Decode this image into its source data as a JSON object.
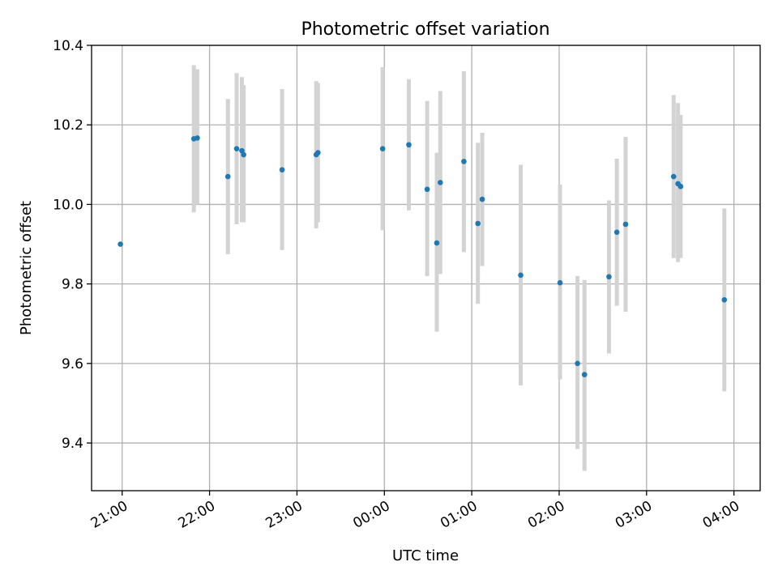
{
  "chart_data": {
    "type": "scatter",
    "title": "Photometric offset variation",
    "xlabel": "UTC time",
    "ylabel": "Photometric offset",
    "x_axis": {
      "unit": "UTC time (hours; values past 24 are after midnight on the next day)",
      "range": [
        20.65,
        28.3
      ],
      "ticks": [
        21,
        22,
        23,
        24,
        25,
        26,
        27,
        28
      ],
      "tick_labels": [
        "21:00",
        "22:00",
        "23:00",
        "00:00",
        "01:00",
        "02:00",
        "03:00",
        "04:00"
      ]
    },
    "y_axis": {
      "range": [
        9.28,
        10.4
      ],
      "ticks": [
        9.4,
        9.6,
        9.8,
        10.0,
        10.2,
        10.4
      ],
      "tick_labels": [
        "9.4",
        "9.6",
        "9.8",
        "10.0",
        "10.2",
        "10.4"
      ]
    },
    "grid": true,
    "marker_color": "#1f77b4",
    "errorbar_color": "#d3d3d3",
    "points": [
      {
        "x": 20.98,
        "y": 9.9,
        "ylow": null,
        "yhigh": null
      },
      {
        "x": 21.82,
        "y": 10.165,
        "ylow": 9.98,
        "yhigh": 10.35
      },
      {
        "x": 21.86,
        "y": 10.167,
        "ylow": 10.0,
        "yhigh": 10.34
      },
      {
        "x": 22.21,
        "y": 10.07,
        "ylow": 9.875,
        "yhigh": 10.265
      },
      {
        "x": 22.31,
        "y": 10.14,
        "ylow": 9.95,
        "yhigh": 10.33
      },
      {
        "x": 22.37,
        "y": 10.135,
        "ylow": 9.955,
        "yhigh": 10.32
      },
      {
        "x": 22.39,
        "y": 10.125,
        "ylow": 9.955,
        "yhigh": 10.3
      },
      {
        "x": 22.83,
        "y": 10.087,
        "ylow": 9.885,
        "yhigh": 10.29
      },
      {
        "x": 23.22,
        "y": 10.125,
        "ylow": 9.94,
        "yhigh": 10.31
      },
      {
        "x": 23.24,
        "y": 10.13,
        "ylow": 9.955,
        "yhigh": 10.305
      },
      {
        "x": 23.98,
        "y": 10.14,
        "ylow": 9.935,
        "yhigh": 10.345
      },
      {
        "x": 24.28,
        "y": 10.15,
        "ylow": 9.985,
        "yhigh": 10.315
      },
      {
        "x": 24.49,
        "y": 10.038,
        "ylow": 9.82,
        "yhigh": 10.26
      },
      {
        "x": 24.6,
        "y": 9.903,
        "ylow": 9.68,
        "yhigh": 10.13
      },
      {
        "x": 24.64,
        "y": 10.055,
        "ylow": 9.825,
        "yhigh": 10.285
      },
      {
        "x": 24.91,
        "y": 10.108,
        "ylow": 9.88,
        "yhigh": 10.335
      },
      {
        "x": 25.07,
        "y": 9.952,
        "ylow": 9.75,
        "yhigh": 10.155
      },
      {
        "x": 25.12,
        "y": 10.013,
        "ylow": 9.845,
        "yhigh": 10.18
      },
      {
        "x": 25.56,
        "y": 9.822,
        "ylow": 9.545,
        "yhigh": 10.1
      },
      {
        "x": 26.01,
        "y": 9.803,
        "ylow": 9.56,
        "yhigh": 10.05
      },
      {
        "x": 26.21,
        "y": 9.6,
        "ylow": 9.385,
        "yhigh": 9.82
      },
      {
        "x": 26.29,
        "y": 9.572,
        "ylow": 9.33,
        "yhigh": 9.81
      },
      {
        "x": 26.57,
        "y": 9.818,
        "ylow": 9.625,
        "yhigh": 10.01
      },
      {
        "x": 26.66,
        "y": 9.93,
        "ylow": 9.745,
        "yhigh": 10.115
      },
      {
        "x": 26.76,
        "y": 9.95,
        "ylow": 9.73,
        "yhigh": 10.17
      },
      {
        "x": 27.31,
        "y": 10.07,
        "ylow": 9.865,
        "yhigh": 10.275
      },
      {
        "x": 27.36,
        "y": 10.052,
        "ylow": 9.855,
        "yhigh": 10.255
      },
      {
        "x": 27.39,
        "y": 10.045,
        "ylow": 9.865,
        "yhigh": 10.225
      },
      {
        "x": 27.89,
        "y": 9.76,
        "ylow": 9.53,
        "yhigh": 9.99
      }
    ]
  }
}
